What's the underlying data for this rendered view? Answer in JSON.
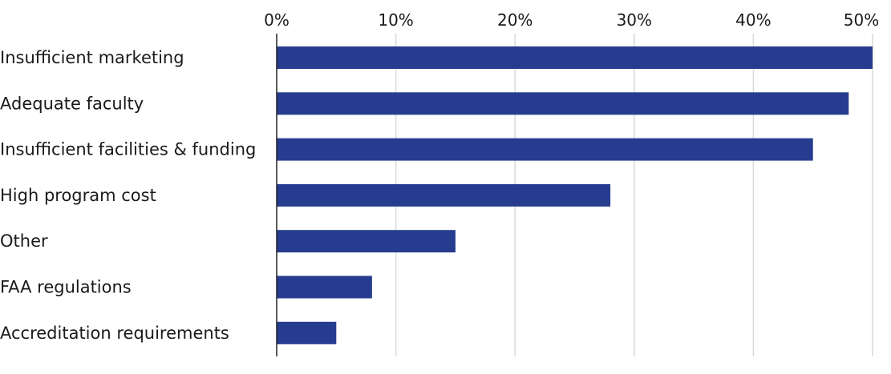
{
  "chart_data": {
    "type": "bar",
    "orientation": "horizontal",
    "title": "",
    "xlabel": "",
    "ylabel": "",
    "categories": [
      "Insufficient marketing",
      "Adequate faculty",
      "Insufficient facilities & funding",
      "High program cost",
      "Other",
      "FAA regulations",
      "Accreditation requirements"
    ],
    "values": [
      50,
      48,
      45,
      28,
      15,
      8,
      5
    ],
    "xlim": [
      0,
      50
    ],
    "x_ticks": [
      0,
      10,
      20,
      30,
      40,
      50
    ],
    "x_tick_labels": [
      "0%",
      "10%",
      "20%",
      "30%",
      "40%",
      "50%"
    ],
    "x_axis_position": "top",
    "grid": true,
    "legend": "none",
    "colors": {
      "bar": "#263d8f",
      "grid": "#d9d9d9",
      "axis": "#222222",
      "text": "#1a1a1a"
    }
  }
}
